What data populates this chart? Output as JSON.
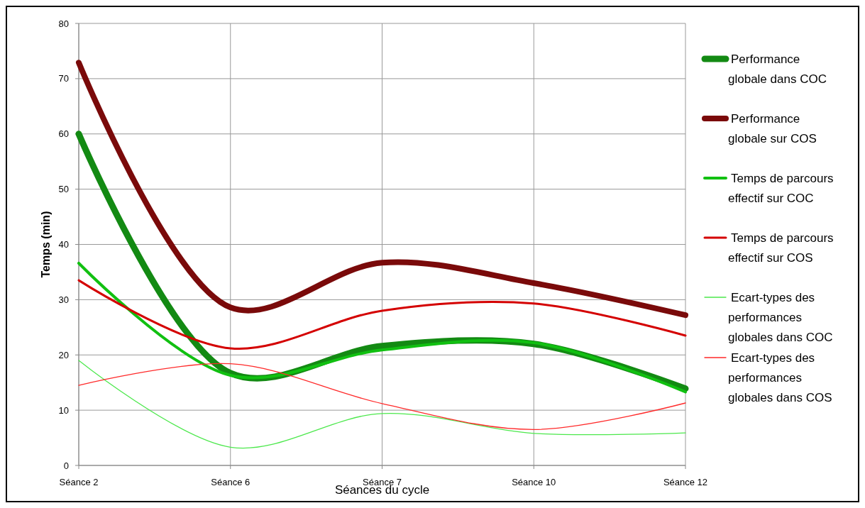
{
  "chart_data": {
    "type": "line",
    "xlabel": "Séances du cycle",
    "ylabel": "Temps (min)",
    "categories": [
      "Séance 2",
      "Séance 6",
      "Séance 7",
      "Séance 10",
      "Séance 12"
    ],
    "ylim": [
      0,
      80
    ],
    "yticks": [
      0,
      10,
      20,
      30,
      40,
      50,
      60,
      70,
      80
    ],
    "grid": true,
    "legend": "right",
    "marker": "none",
    "series": [
      {
        "name": "Performance globale dans COC",
        "color": "#138a13",
        "values": [
          60,
          16.7,
          21.6,
          22,
          13.9
        ]
      },
      {
        "name": "Performance globale sur COS",
        "color": "#7a0a0a",
        "values": [
          72.9,
          28.6,
          36.7,
          33,
          27.2
        ]
      },
      {
        "name": "Temps de parcours effectif sur COC",
        "color": "#11c011",
        "values": [
          36.6,
          16.3,
          20.9,
          22.2,
          13.3
        ]
      },
      {
        "name": "Temps de parcours effectif sur COS",
        "color": "#d40000",
        "values": [
          33.5,
          21.2,
          28,
          29.3,
          23.5
        ]
      },
      {
        "name": "Ecart-types des performances globales dans COC",
        "color": "#4ce84c",
        "values": [
          19,
          3.3,
          9.4,
          5.8,
          5.9
        ]
      },
      {
        "name": "Ecart-types des performances globales dans COS",
        "color": "#ff2a2a",
        "values": [
          14.5,
          18.4,
          11.2,
          6.5,
          11.3
        ]
      }
    ]
  }
}
